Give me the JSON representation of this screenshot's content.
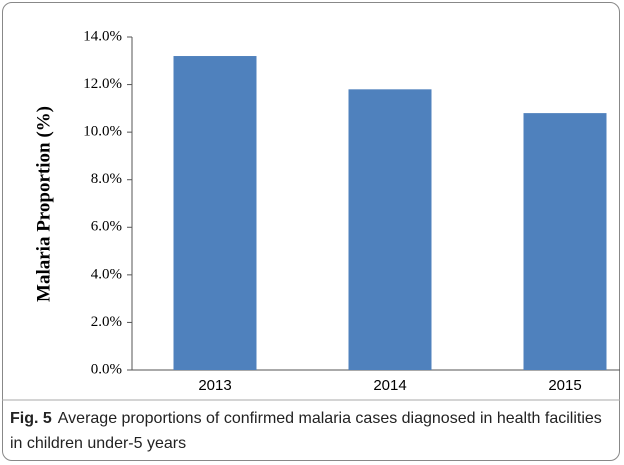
{
  "chart_data": {
    "type": "bar",
    "y_label": "Malaria Proportion (%)",
    "categories": [
      "2013",
      "2014",
      "2015"
    ],
    "values": [
      13.2,
      11.8,
      10.8
    ],
    "color": "#4f81bd",
    "ylim": [
      0,
      14
    ],
    "yticks": [
      {
        "value": 0,
        "label": "0.0%"
      },
      {
        "value": 2,
        "label": "2.0%"
      },
      {
        "value": 4,
        "label": "4.0%"
      },
      {
        "value": 6,
        "label": "6.0%"
      },
      {
        "value": 8,
        "label": "8.0%"
      },
      {
        "value": 10,
        "label": "10.0%"
      },
      {
        "value": 12,
        "label": "12.0%"
      },
      {
        "value": 14,
        "label": "14.0%"
      }
    ],
    "grid": false
  },
  "caption": {
    "label": "Fig. 5",
    "text": "Average proportions of confirmed malaria cases diagnosed in health facilities in children under-5 years"
  }
}
